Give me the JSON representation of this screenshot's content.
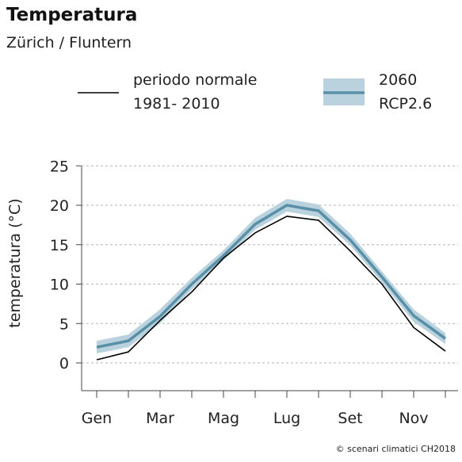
{
  "header": {
    "title": "Temperatura",
    "subtitle": "Zürich / Fluntern"
  },
  "legend": {
    "baseline_line1": "periodo normale",
    "baseline_line2": "1981- 2010",
    "scenario_line1": "2060",
    "scenario_line2": "RCP2.6"
  },
  "footer": "© scenari climatici CH2018",
  "colors": {
    "baseline": "#000000",
    "scenario_line": "#5a8fa8",
    "scenario_band": "#b9d2dd"
  },
  "chart_data": {
    "type": "line",
    "ylabel": "temperatura (°C)",
    "ylim": [
      -3.5,
      25
    ],
    "yticks": [
      0,
      5,
      10,
      15,
      20,
      25
    ],
    "grid": true,
    "months": 12,
    "xtick_labels": [
      {
        "month": 1,
        "label": "Gen"
      },
      {
        "month": 3,
        "label": "Mar"
      },
      {
        "month": 5,
        "label": "Mag"
      },
      {
        "month": 7,
        "label": "Lug"
      },
      {
        "month": 9,
        "label": "Set"
      },
      {
        "month": 11,
        "label": "Nov"
      }
    ],
    "series": [
      {
        "name": "periodo normale 1981- 2010",
        "values": [
          0.4,
          1.4,
          5.4,
          9.0,
          13.3,
          16.5,
          18.6,
          18.1,
          14.2,
          10.0,
          4.5,
          1.5
        ]
      },
      {
        "name": "2060 RCP2.6",
        "values": [
          2.0,
          2.8,
          5.9,
          10.0,
          13.6,
          17.6,
          20.0,
          19.3,
          15.6,
          10.9,
          6.0,
          3.1
        ],
        "lower": [
          1.2,
          2.0,
          5.0,
          9.3,
          13.0,
          16.9,
          19.2,
          18.5,
          14.9,
          10.2,
          5.2,
          2.4
        ],
        "upper": [
          2.8,
          3.6,
          6.8,
          10.8,
          14.3,
          18.4,
          20.8,
          20.1,
          16.4,
          11.6,
          6.8,
          3.8
        ]
      }
    ]
  }
}
